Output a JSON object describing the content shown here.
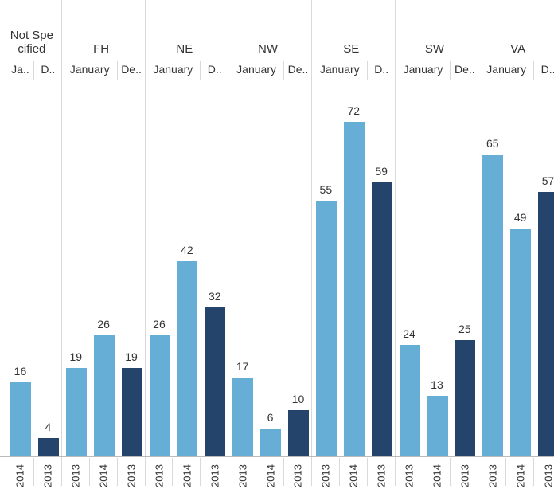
{
  "chart_data": {
    "type": "bar",
    "groups": [
      {
        "name": "Not Specified",
        "months": [
          {
            "label": "Ja..",
            "bars": [
              {
                "year": "2014",
                "value": 16,
                "color": "#67aed6"
              }
            ]
          },
          {
            "label": "D..",
            "bars": [
              {
                "year": "2013",
                "value": 4,
                "color": "#24446b"
              }
            ]
          }
        ]
      },
      {
        "name": "FH",
        "months": [
          {
            "label": "January",
            "bars": [
              {
                "year": "2013",
                "value": 19,
                "color": "#67aed6"
              },
              {
                "year": "2014",
                "value": 26,
                "color": "#67aed6"
              }
            ]
          },
          {
            "label": "De..",
            "bars": [
              {
                "year": "2013",
                "value": 19,
                "color": "#24446b"
              }
            ]
          }
        ]
      },
      {
        "name": "NE",
        "months": [
          {
            "label": "January",
            "bars": [
              {
                "year": "2013",
                "value": 26,
                "color": "#67aed6"
              },
              {
                "year": "2014",
                "value": 42,
                "color": "#67aed6"
              }
            ]
          },
          {
            "label": "D..",
            "bars": [
              {
                "year": "2013",
                "value": 32,
                "color": "#24446b"
              }
            ]
          }
        ]
      },
      {
        "name": "NW",
        "months": [
          {
            "label": "January",
            "bars": [
              {
                "year": "2013",
                "value": 17,
                "color": "#67aed6"
              },
              {
                "year": "2014",
                "value": 6,
                "color": "#67aed6"
              }
            ]
          },
          {
            "label": "De..",
            "bars": [
              {
                "year": "2013",
                "value": 10,
                "color": "#24446b"
              }
            ]
          }
        ]
      },
      {
        "name": "SE",
        "months": [
          {
            "label": "January",
            "bars": [
              {
                "year": "2013",
                "value": 55,
                "color": "#67aed6"
              },
              {
                "year": "2014",
                "value": 72,
                "color": "#67aed6"
              }
            ]
          },
          {
            "label": "D..",
            "bars": [
              {
                "year": "2013",
                "value": 59,
                "color": "#24446b"
              }
            ]
          }
        ]
      },
      {
        "name": "SW",
        "months": [
          {
            "label": "January",
            "bars": [
              {
                "year": "2013",
                "value": 24,
                "color": "#67aed6"
              },
              {
                "year": "2014",
                "value": 13,
                "color": "#67aed6"
              }
            ]
          },
          {
            "label": "De..",
            "bars": [
              {
                "year": "2013",
                "value": 25,
                "color": "#24446b"
              }
            ]
          }
        ]
      },
      {
        "name": "VA",
        "months": [
          {
            "label": "January",
            "bars": [
              {
                "year": "2013",
                "value": 65,
                "color": "#67aed6"
              },
              {
                "year": "2014",
                "value": 49,
                "color": "#67aed6"
              }
            ]
          },
          {
            "label": "D..",
            "bars": [
              {
                "year": "2013",
                "value": 57,
                "color": "#24446b"
              }
            ]
          }
        ]
      }
    ]
  }
}
